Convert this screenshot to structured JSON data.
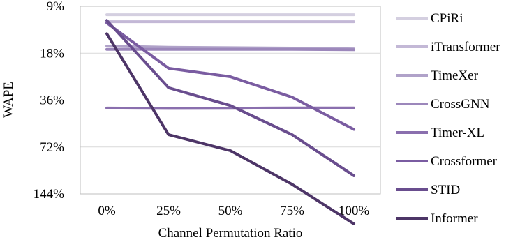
{
  "chart_data": {
    "type": "line",
    "title": "",
    "xlabel": "Channel Permutation Ratio",
    "ylabel": "WAPE",
    "categories": [
      "0%",
      "25%",
      "50%",
      "75%",
      "100%"
    ],
    "y_scale": "log2-reversed",
    "ylim": [
      9,
      144
    ],
    "y_ticks": [
      9,
      18,
      36,
      72,
      144
    ],
    "y_tick_labels": [
      "9%",
      "18%",
      "36%",
      "72%",
      "144%"
    ],
    "grid": "horizontal",
    "legend_position": "right",
    "series": [
      {
        "name": "CPiRi",
        "color": "#d4cfe0",
        "values": [
          10.2,
          10.2,
          10.2,
          10.2,
          10.2
        ]
      },
      {
        "name": "iTransformer",
        "color": "#c3b8d6",
        "values": [
          11.3,
          11.3,
          11.3,
          11.3,
          11.3
        ]
      },
      {
        "name": "TimeXer",
        "color": "#b0a2c9",
        "values": [
          16.2,
          16.5,
          16.6,
          16.7,
          16.9
        ]
      },
      {
        "name": "CrossGNN",
        "color": "#9c87bb",
        "values": [
          17.0,
          17.0,
          17.0,
          17.0,
          17.1
        ]
      },
      {
        "name": "Timer-XL",
        "color": "#8a6fae",
        "values": [
          40.5,
          40.7,
          40.6,
          40.4,
          40.4
        ]
      },
      {
        "name": "Crossformer",
        "color": "#7a5ca1",
        "values": [
          11.5,
          22.5,
          25.5,
          34.5,
          55.5
        ]
      },
      {
        "name": "STID",
        "color": "#694d8e",
        "values": [
          11.1,
          30.0,
          39.0,
          60.0,
          110.0
        ]
      },
      {
        "name": "Informer",
        "color": "#4d3567",
        "values": [
          13.5,
          60.0,
          76.0,
          125.0,
          224.0
        ]
      }
    ]
  }
}
